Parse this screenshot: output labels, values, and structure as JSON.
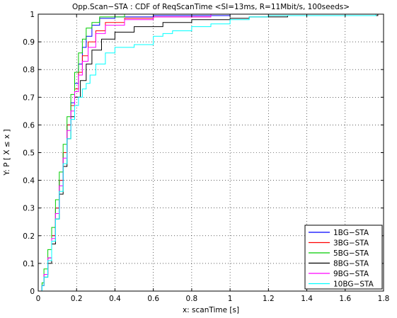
{
  "chart_data": {
    "type": "line",
    "title": "Opp.Scan−STA : CDF of ReqScanTime <SI=13ms, R=11Mbit/s, 100seeds>",
    "xlabel": "x: scanTime [s]",
    "ylabel": "Y: P [ X ≤ x ]",
    "xlim": [
      0,
      1.8
    ],
    "ylim": [
      0,
      1
    ],
    "xticks": [
      "0",
      "0.2",
      "0.4",
      "0.6",
      "0.8",
      "1",
      "1.2",
      "1.4",
      "1.6",
      "1.8"
    ],
    "yticks": [
      "0",
      "0.1",
      "0.2",
      "0.3",
      "0.4",
      "0.5",
      "0.6",
      "0.7",
      "0.8",
      "0.9",
      "1"
    ],
    "grid": true,
    "legend_position": "bottom-right",
    "series": [
      {
        "name": "1BG−STA",
        "color": "#0000ff",
        "points": [
          [
            0.01,
            0
          ],
          [
            0.02,
            0.02
          ],
          [
            0.03,
            0.06
          ],
          [
            0.05,
            0.12
          ],
          [
            0.07,
            0.2
          ],
          [
            0.09,
            0.3
          ],
          [
            0.11,
            0.4
          ],
          [
            0.13,
            0.5
          ],
          [
            0.15,
            0.6
          ],
          [
            0.17,
            0.68
          ],
          [
            0.19,
            0.75
          ],
          [
            0.21,
            0.82
          ],
          [
            0.23,
            0.88
          ],
          [
            0.25,
            0.92
          ],
          [
            0.28,
            0.96
          ],
          [
            0.32,
            0.985
          ],
          [
            0.4,
            0.99
          ],
          [
            0.6,
            0.995
          ],
          [
            1.0,
            1.0
          ]
        ]
      },
      {
        "name": "3BG−STA",
        "color": "#ff0000",
        "points": [
          [
            0.01,
            0
          ],
          [
            0.02,
            0.02
          ],
          [
            0.03,
            0.06
          ],
          [
            0.05,
            0.12
          ],
          [
            0.07,
            0.2
          ],
          [
            0.09,
            0.3
          ],
          [
            0.11,
            0.4
          ],
          [
            0.13,
            0.5
          ],
          [
            0.15,
            0.6
          ],
          [
            0.17,
            0.67
          ],
          [
            0.19,
            0.73
          ],
          [
            0.21,
            0.79
          ],
          [
            0.23,
            0.85
          ],
          [
            0.26,
            0.9
          ],
          [
            0.3,
            0.94
          ],
          [
            0.35,
            0.97
          ],
          [
            0.45,
            0.985
          ],
          [
            0.6,
            0.99
          ],
          [
            0.9,
            1.0
          ]
        ]
      },
      {
        "name": "5BG−STA",
        "color": "#00cc00",
        "points": [
          [
            0.01,
            0
          ],
          [
            0.02,
            0.03
          ],
          [
            0.03,
            0.08
          ],
          [
            0.05,
            0.15
          ],
          [
            0.07,
            0.23
          ],
          [
            0.09,
            0.33
          ],
          [
            0.11,
            0.43
          ],
          [
            0.13,
            0.53
          ],
          [
            0.15,
            0.63
          ],
          [
            0.17,
            0.71
          ],
          [
            0.19,
            0.79
          ],
          [
            0.21,
            0.86
          ],
          [
            0.23,
            0.91
          ],
          [
            0.25,
            0.95
          ],
          [
            0.28,
            0.97
          ],
          [
            0.32,
            0.99
          ],
          [
            0.45,
            1.0
          ]
        ]
      },
      {
        "name": "8BG−STA",
        "color": "#000000",
        "points": [
          [
            0.01,
            0
          ],
          [
            0.02,
            0.02
          ],
          [
            0.03,
            0.05
          ],
          [
            0.05,
            0.1
          ],
          [
            0.07,
            0.17
          ],
          [
            0.09,
            0.26
          ],
          [
            0.11,
            0.35
          ],
          [
            0.13,
            0.45
          ],
          [
            0.15,
            0.55
          ],
          [
            0.17,
            0.63
          ],
          [
            0.19,
            0.7
          ],
          [
            0.22,
            0.76
          ],
          [
            0.25,
            0.82
          ],
          [
            0.28,
            0.87
          ],
          [
            0.33,
            0.91
          ],
          [
            0.4,
            0.935
          ],
          [
            0.5,
            0.955
          ],
          [
            0.65,
            0.97
          ],
          [
            0.8,
            0.98
          ],
          [
            1.0,
            0.985
          ],
          [
            1.1,
            0.99
          ],
          [
            1.3,
            0.995
          ],
          [
            1.77,
            1.0
          ]
        ]
      },
      {
        "name": "9BG−STA",
        "color": "#ff00ff",
        "points": [
          [
            0.01,
            0
          ],
          [
            0.02,
            0.02
          ],
          [
            0.03,
            0.06
          ],
          [
            0.05,
            0.12
          ],
          [
            0.07,
            0.19
          ],
          [
            0.09,
            0.28
          ],
          [
            0.11,
            0.38
          ],
          [
            0.13,
            0.48
          ],
          [
            0.15,
            0.58
          ],
          [
            0.17,
            0.65
          ],
          [
            0.19,
            0.72
          ],
          [
            0.21,
            0.78
          ],
          [
            0.23,
            0.83
          ],
          [
            0.26,
            0.88
          ],
          [
            0.3,
            0.93
          ],
          [
            0.35,
            0.96
          ],
          [
            0.45,
            0.98
          ],
          [
            0.6,
            0.99
          ],
          [
            0.9,
            1.0
          ]
        ]
      },
      {
        "name": "10BG−STA",
        "color": "#00ffff",
        "points": [
          [
            0.01,
            0
          ],
          [
            0.02,
            0.02
          ],
          [
            0.03,
            0.05
          ],
          [
            0.05,
            0.11
          ],
          [
            0.07,
            0.18
          ],
          [
            0.09,
            0.26
          ],
          [
            0.11,
            0.36
          ],
          [
            0.13,
            0.46
          ],
          [
            0.15,
            0.55
          ],
          [
            0.17,
            0.62
          ],
          [
            0.19,
            0.67
          ],
          [
            0.21,
            0.7
          ],
          [
            0.23,
            0.73
          ],
          [
            0.25,
            0.75
          ],
          [
            0.27,
            0.78
          ],
          [
            0.3,
            0.82
          ],
          [
            0.35,
            0.86
          ],
          [
            0.4,
            0.88
          ],
          [
            0.5,
            0.89
          ],
          [
            0.6,
            0.92
          ],
          [
            0.65,
            0.93
          ],
          [
            0.7,
            0.94
          ],
          [
            0.8,
            0.955
          ],
          [
            0.9,
            0.965
          ],
          [
            1.0,
            0.98
          ],
          [
            1.1,
            0.99
          ],
          [
            1.2,
            0.995
          ],
          [
            1.76,
            1.0
          ]
        ]
      }
    ]
  }
}
